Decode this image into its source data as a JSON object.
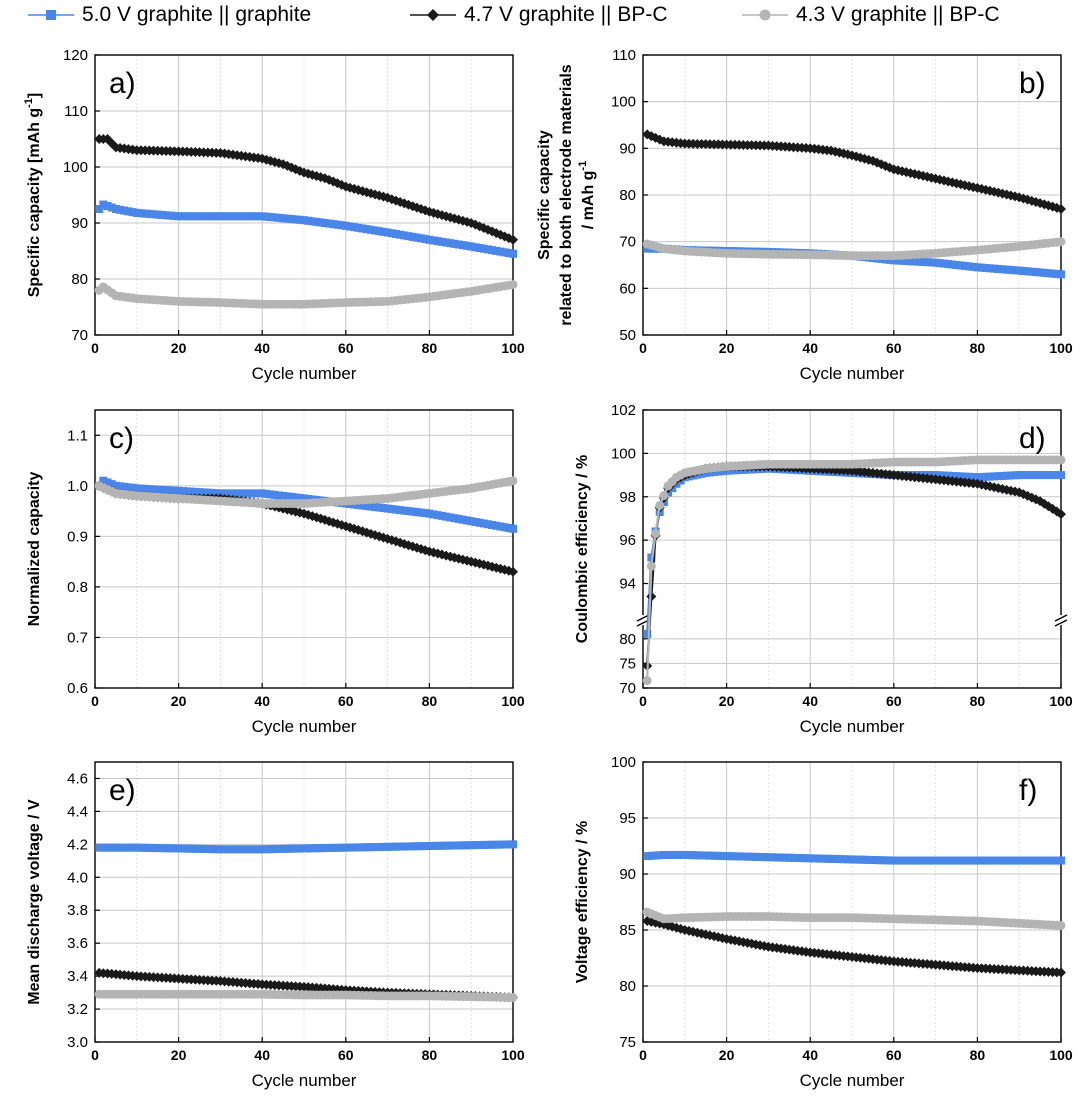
{
  "colors": {
    "blue": "#4a86e8",
    "black": "#1a1a1a",
    "gray": "#b4b4b4",
    "grid": "#c8c8c8"
  },
  "legend": [
    {
      "label": "5.0 V graphite || graphite",
      "marker": "square",
      "color": "#4a86e8"
    },
    {
      "label": "4.7 V graphite || BP-C",
      "marker": "diamond",
      "color": "#1a1a1a"
    },
    {
      "label": "4.3 V graphite || BP-C",
      "marker": "circle",
      "color": "#b4b4b4"
    }
  ],
  "chart_data": [
    {
      "id": "a",
      "type": "line",
      "panel_label": "a)",
      "xlabel": "Cycle number",
      "ylabel_lines": [
        "Specific capacity [mAh g",
        "-1",
        "]"
      ],
      "xlim": [
        0,
        100
      ],
      "ylim": [
        70,
        120
      ],
      "xticks": [
        0,
        20,
        40,
        60,
        80,
        100
      ],
      "yticks": [
        70,
        80,
        90,
        100,
        110,
        120
      ],
      "series": [
        {
          "name": "5.0 V graphite || graphite",
          "x": [
            1,
            2,
            5,
            10,
            20,
            30,
            40,
            50,
            60,
            70,
            80,
            90,
            100
          ],
          "y": [
            92.5,
            93.3,
            92.5,
            91.8,
            91.2,
            91.2,
            91.2,
            90.5,
            89.5,
            88.3,
            87.0,
            85.8,
            84.5
          ]
        },
        {
          "name": "4.7 V graphite || BP-C",
          "x": [
            1,
            3,
            5,
            10,
            20,
            30,
            40,
            45,
            50,
            55,
            60,
            70,
            80,
            90,
            100
          ],
          "y": [
            105.0,
            105.0,
            103.5,
            103.0,
            102.8,
            102.5,
            101.5,
            100.5,
            99.0,
            98.0,
            96.5,
            94.5,
            92.0,
            90.0,
            87.0
          ]
        },
        {
          "name": "4.3 V graphite || BP-C",
          "x": [
            1,
            2,
            5,
            10,
            20,
            30,
            40,
            50,
            60,
            70,
            80,
            90,
            100
          ],
          "y": [
            78.0,
            78.6,
            77.0,
            76.5,
            76.0,
            75.8,
            75.5,
            75.5,
            75.8,
            76.0,
            76.8,
            77.8,
            79.0
          ]
        }
      ]
    },
    {
      "id": "b",
      "type": "line",
      "panel_label": "b)",
      "xlabel": "Cycle number",
      "ylabel_lines": [
        "Specific capacity",
        "related to both electrode materials",
        "/ mAh g",
        "-1"
      ],
      "xlim": [
        0,
        100
      ],
      "ylim": [
        50,
        110
      ],
      "xticks": [
        0,
        20,
        40,
        60,
        80,
        100
      ],
      "yticks": [
        50,
        60,
        70,
        80,
        90,
        100,
        110
      ],
      "series": [
        {
          "name": "5.0 V graphite || graphite",
          "x": [
            1,
            5,
            10,
            20,
            30,
            40,
            50,
            60,
            70,
            80,
            90,
            100
          ],
          "y": [
            68.5,
            68.5,
            68.2,
            68.0,
            67.8,
            67.5,
            67.0,
            66.0,
            65.5,
            64.5,
            63.8,
            63.0
          ]
        },
        {
          "name": "4.7 V graphite || BP-C",
          "x": [
            1,
            5,
            10,
            20,
            30,
            40,
            45,
            50,
            55,
            60,
            70,
            80,
            90,
            100
          ],
          "y": [
            93.0,
            91.5,
            91.0,
            90.8,
            90.6,
            90.0,
            89.5,
            88.5,
            87.3,
            85.5,
            83.5,
            81.5,
            79.5,
            77.0
          ]
        },
        {
          "name": "4.3 V graphite || BP-C",
          "x": [
            1,
            5,
            10,
            20,
            30,
            40,
            50,
            60,
            70,
            80,
            90,
            100
          ],
          "y": [
            69.5,
            68.5,
            68.0,
            67.5,
            67.3,
            67.2,
            67.0,
            67.0,
            67.5,
            68.2,
            69.0,
            70.0
          ]
        }
      ]
    },
    {
      "id": "c",
      "type": "line",
      "panel_label": "c)",
      "xlabel": "Cycle number",
      "ylabel_lines": [
        "Normalized capacity"
      ],
      "xlim": [
        0,
        100
      ],
      "ylim": [
        0.6,
        1.15
      ],
      "xticks": [
        0,
        20,
        40,
        60,
        80,
        100
      ],
      "yticks": [
        0.6,
        0.7,
        0.8,
        0.9,
        1.0,
        1.1
      ],
      "series": [
        {
          "name": "5.0 V graphite || graphite",
          "x": [
            1,
            2,
            5,
            10,
            20,
            30,
            40,
            50,
            60,
            70,
            80,
            90,
            100
          ],
          "y": [
            1.0,
            1.01,
            1.0,
            0.995,
            0.99,
            0.985,
            0.985,
            0.975,
            0.965,
            0.955,
            0.945,
            0.93,
            0.915
          ]
        },
        {
          "name": "4.7 V graphite || BP-C",
          "x": [
            1,
            5,
            10,
            20,
            30,
            40,
            50,
            60,
            70,
            80,
            90,
            100
          ],
          "y": [
            1.0,
            0.985,
            0.98,
            0.975,
            0.975,
            0.965,
            0.945,
            0.92,
            0.895,
            0.87,
            0.85,
            0.83
          ]
        },
        {
          "name": "4.3 V graphite || BP-C",
          "x": [
            1,
            5,
            10,
            20,
            30,
            40,
            50,
            60,
            70,
            80,
            90,
            100
          ],
          "y": [
            1.0,
            0.985,
            0.98,
            0.975,
            0.97,
            0.965,
            0.965,
            0.97,
            0.975,
            0.985,
            0.995,
            1.01
          ]
        }
      ]
    },
    {
      "id": "d",
      "type": "line",
      "panel_label": "d)",
      "xlabel": "Cycle number",
      "ylabel_lines": [
        "Coulombic efficiency / %"
      ],
      "broken_axis": true,
      "xlim": [
        0,
        100
      ],
      "ylim_lower": [
        70,
        83
      ],
      "ylim_upper": [
        92.5,
        102
      ],
      "xticks": [
        0,
        20,
        40,
        60,
        80,
        100
      ],
      "yticks": [
        70,
        75,
        80,
        94,
        96,
        98,
        100,
        102
      ],
      "series": [
        {
          "name": "5.0 V graphite || graphite",
          "x": [
            1,
            2,
            3,
            4,
            6,
            8,
            10,
            15,
            20,
            30,
            40,
            50,
            60,
            70,
            80,
            90,
            100
          ],
          "y": [
            81.0,
            95.2,
            96.4,
            97.3,
            98.2,
            98.6,
            98.9,
            99.1,
            99.2,
            99.3,
            99.2,
            99.1,
            99.0,
            99.0,
            98.9,
            99.0,
            99.0
          ]
        },
        {
          "name": "4.7 V graphite || BP-C",
          "x": [
            1,
            2,
            3,
            4,
            6,
            8,
            10,
            15,
            20,
            30,
            40,
            50,
            60,
            70,
            80,
            90,
            95,
            100
          ],
          "y": [
            74.5,
            93.4,
            96.2,
            97.5,
            98.4,
            98.8,
            99.0,
            99.3,
            99.4,
            99.4,
            99.3,
            99.2,
            99.0,
            98.8,
            98.6,
            98.2,
            97.8,
            97.2
          ]
        },
        {
          "name": "4.3 V graphite || BP-C",
          "x": [
            1,
            2,
            3,
            4,
            6,
            8,
            10,
            15,
            20,
            30,
            40,
            50,
            60,
            70,
            80,
            90,
            100
          ],
          "y": [
            71.5,
            94.8,
            96.3,
            97.6,
            98.5,
            98.9,
            99.1,
            99.3,
            99.4,
            99.5,
            99.5,
            99.5,
            99.6,
            99.6,
            99.7,
            99.7,
            99.7
          ]
        }
      ]
    },
    {
      "id": "e",
      "type": "line",
      "panel_label": "e)",
      "xlabel": "Cycle number",
      "ylabel_lines": [
        "Mean discharge voltage / V"
      ],
      "xlim": [
        0,
        100
      ],
      "ylim": [
        3.0,
        4.7
      ],
      "xticks": [
        0,
        20,
        40,
        60,
        80,
        100
      ],
      "yticks": [
        3.0,
        3.2,
        3.4,
        3.6,
        3.8,
        4.0,
        4.2,
        4.4,
        4.6
      ],
      "series": [
        {
          "name": "5.0 V graphite || graphite",
          "x": [
            1,
            10,
            20,
            30,
            40,
            50,
            60,
            70,
            80,
            90,
            100
          ],
          "y": [
            4.18,
            4.18,
            4.175,
            4.17,
            4.17,
            4.175,
            4.18,
            4.185,
            4.19,
            4.195,
            4.2
          ]
        },
        {
          "name": "4.7 V graphite || BP-C",
          "x": [
            1,
            10,
            20,
            30,
            40,
            50,
            60,
            70,
            80,
            90,
            100
          ],
          "y": [
            3.42,
            3.4,
            3.385,
            3.37,
            3.35,
            3.335,
            3.315,
            3.3,
            3.29,
            3.28,
            3.27
          ]
        },
        {
          "name": "4.3 V graphite || BP-C",
          "x": [
            1,
            10,
            20,
            30,
            40,
            50,
            60,
            70,
            80,
            90,
            100
          ],
          "y": [
            3.29,
            3.29,
            3.29,
            3.29,
            3.29,
            3.285,
            3.285,
            3.28,
            3.28,
            3.275,
            3.27
          ]
        }
      ]
    },
    {
      "id": "f",
      "type": "line",
      "panel_label": "f)",
      "xlabel": "Cycle number",
      "ylabel_lines": [
        "Voltage efficiency / %"
      ],
      "xlim": [
        0,
        100
      ],
      "ylim": [
        75,
        100
      ],
      "xticks": [
        0,
        20,
        40,
        60,
        80,
        100
      ],
      "yticks": [
        75,
        80,
        85,
        90,
        95,
        100
      ],
      "series": [
        {
          "name": "5.0 V graphite || graphite",
          "x": [
            1,
            5,
            10,
            20,
            30,
            40,
            50,
            60,
            70,
            80,
            90,
            100
          ],
          "y": [
            91.6,
            91.7,
            91.7,
            91.6,
            91.5,
            91.4,
            91.3,
            91.2,
            91.2,
            91.2,
            91.2,
            91.2
          ]
        },
        {
          "name": "4.7 V graphite || BP-C",
          "x": [
            1,
            5,
            10,
            20,
            30,
            40,
            50,
            60,
            70,
            80,
            90,
            100
          ],
          "y": [
            85.8,
            85.5,
            85.0,
            84.2,
            83.5,
            83.0,
            82.6,
            82.2,
            81.9,
            81.6,
            81.4,
            81.2
          ]
        },
        {
          "name": "4.3 V graphite || BP-C",
          "x": [
            1,
            5,
            10,
            20,
            30,
            40,
            50,
            60,
            70,
            80,
            90,
            100
          ],
          "y": [
            86.6,
            86.0,
            86.1,
            86.2,
            86.2,
            86.1,
            86.1,
            86.0,
            85.9,
            85.8,
            85.6,
            85.4
          ]
        }
      ]
    }
  ]
}
